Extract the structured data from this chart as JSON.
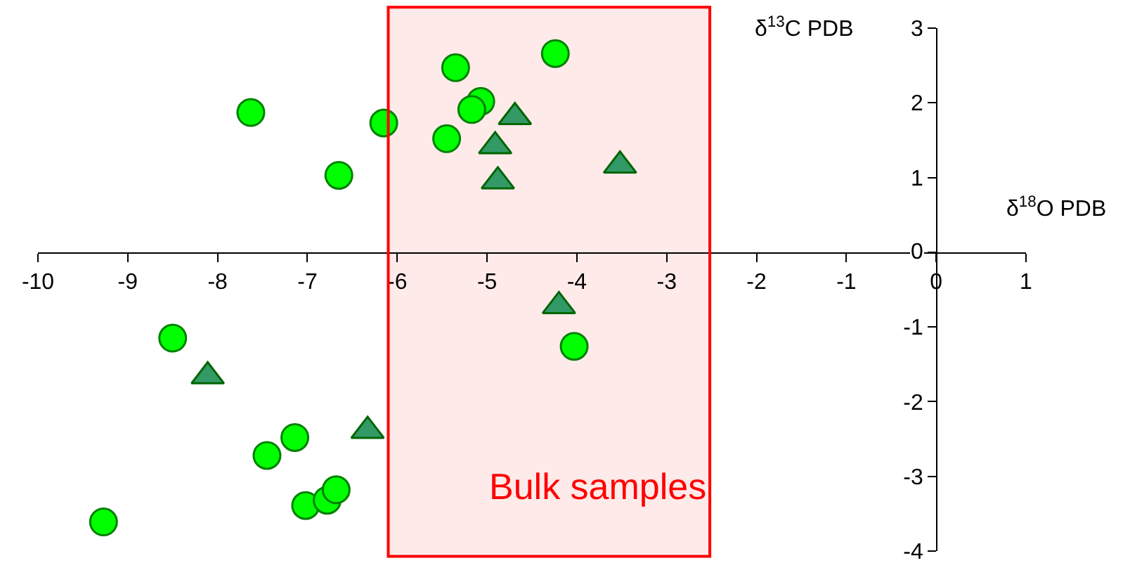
{
  "chart_data": {
    "type": "scatter",
    "xlabel": "δ$^{18}$O PDB",
    "ylabel": "δ$^{13}$C PDB",
    "xlim": [
      -10,
      1
    ],
    "ylim": [
      -4,
      3
    ],
    "xticks": [
      -10,
      -9,
      -8,
      -7,
      -6,
      -5,
      -4,
      -3,
      -2,
      -1,
      0,
      1
    ],
    "yticks": [
      -4,
      -3,
      -2,
      -1,
      0,
      1,
      2,
      3
    ],
    "series": [
      {
        "color": "#00ff00",
        "marker": "circle",
        "x": [
          -7.63,
          -6.15,
          -5.35,
          -4.24,
          -5.07,
          -5.17,
          -5.45,
          -6.65,
          -8.5,
          -7.45,
          -7.14,
          -7.02,
          -6.78,
          -6.68,
          -9.27,
          -4.03
        ],
        "values": [
          1.87,
          1.73,
          2.47,
          2.66,
          2.02,
          1.91,
          1.52,
          1.03,
          -1.15,
          -2.72,
          -2.48,
          -3.39,
          -3.32,
          -3.18,
          -3.61,
          -1.26
        ]
      },
      {
        "color": "#339966",
        "marker": "triangle",
        "x": [
          -4.69,
          -4.91,
          -4.88,
          -3.52,
          -8.11,
          -6.33,
          -4.2
        ],
        "values": [
          1.81,
          1.42,
          0.95,
          1.16,
          -1.66,
          -2.39,
          -0.72
        ]
      }
    ],
    "bands": [
      {
        "axis": "x",
        "from": -6.1,
        "to": -2.52,
        "label": "Bulk samples",
        "color": "#ff0000"
      }
    ]
  }
}
